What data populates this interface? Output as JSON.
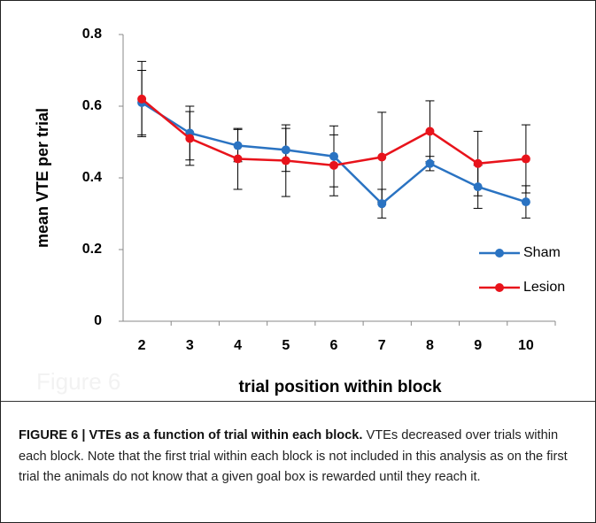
{
  "chart_data": {
    "type": "line",
    "watermark": "Figure 6",
    "xlabel": "trial position within block",
    "ylabel": "mean VTE per trial",
    "categories": [
      "2",
      "3",
      "4",
      "5",
      "6",
      "7",
      "8",
      "9",
      "10"
    ],
    "series": [
      {
        "name": "Sham",
        "color": "#2a73c2",
        "values": [
          0.61,
          0.525,
          0.49,
          0.478,
          0.46,
          0.328,
          0.44,
          0.375,
          0.333
        ],
        "errors": [
          0.09,
          0.075,
          0.045,
          0.06,
          0.085,
          0.04,
          0.02,
          0.06,
          0.045
        ]
      },
      {
        "name": "Lesion",
        "color": "#e8131b",
        "values": [
          0.62,
          0.51,
          0.453,
          0.448,
          0.435,
          0.458,
          0.53,
          0.44,
          0.453
        ],
        "errors": [
          0.105,
          0.075,
          0.085,
          0.1,
          0.085,
          0.125,
          0.085,
          0.09,
          0.095
        ]
      }
    ],
    "ylim": [
      0,
      0.8
    ],
    "yticks": [
      0,
      0.2,
      0.4,
      0.6,
      0.8
    ],
    "grid": false,
    "legend": "right",
    "caption": {
      "label": "FIGURE 6 | VTEs as a function of trial within each block.",
      "text": "VTEs decreased over trials within each block. Note that the first trial within each block is not included in this analysis as on the first trial the animals do not know that a given goal box is rewarded until they reach it."
    }
  }
}
